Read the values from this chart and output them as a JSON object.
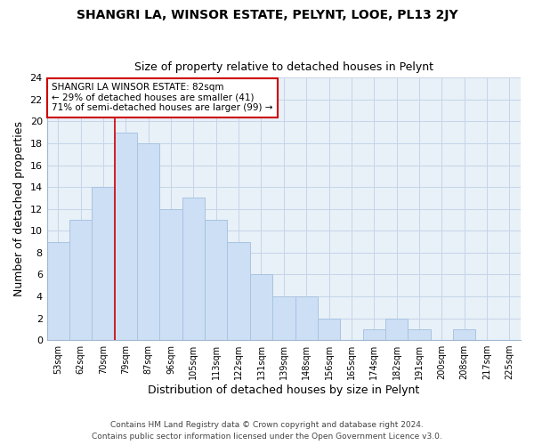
{
  "title": "SHANGRI LA, WINSOR ESTATE, PELYNT, LOOE, PL13 2JY",
  "subtitle": "Size of property relative to detached houses in Pelynt",
  "xlabel": "Distribution of detached houses by size in Pelynt",
  "ylabel": "Number of detached properties",
  "bar_labels": [
    "53sqm",
    "62sqm",
    "70sqm",
    "79sqm",
    "87sqm",
    "96sqm",
    "105sqm",
    "113sqm",
    "122sqm",
    "131sqm",
    "139sqm",
    "148sqm",
    "156sqm",
    "165sqm",
    "174sqm",
    "182sqm",
    "191sqm",
    "200sqm",
    "208sqm",
    "217sqm",
    "225sqm"
  ],
  "bar_values": [
    9,
    11,
    14,
    19,
    18,
    12,
    13,
    11,
    9,
    6,
    4,
    4,
    2,
    0,
    1,
    2,
    1,
    0,
    1,
    0,
    0
  ],
  "bar_color": "#cddff5",
  "bar_edge_color": "#a8c4e0",
  "highlight_bar_index": 3,
  "highlight_color": "#cc0000",
  "ylim": [
    0,
    24
  ],
  "yticks": [
    0,
    2,
    4,
    6,
    8,
    10,
    12,
    14,
    16,
    18,
    20,
    22,
    24
  ],
  "annotation_title": "SHANGRI LA WINSOR ESTATE: 82sqm",
  "annotation_line1": "← 29% of detached houses are smaller (41)",
  "annotation_line2": "71% of semi-detached houses are larger (99) →",
  "annotation_box_color": "#ffffff",
  "annotation_border_color": "#cc0000",
  "footer1": "Contains HM Land Registry data © Crown copyright and database right 2024.",
  "footer2": "Contains public sector information licensed under the Open Government Licence v3.0.",
  "bg_color": "#ffffff",
  "grid_color": "#c5d5e8",
  "title_fontsize": 10,
  "subtitle_fontsize": 9
}
